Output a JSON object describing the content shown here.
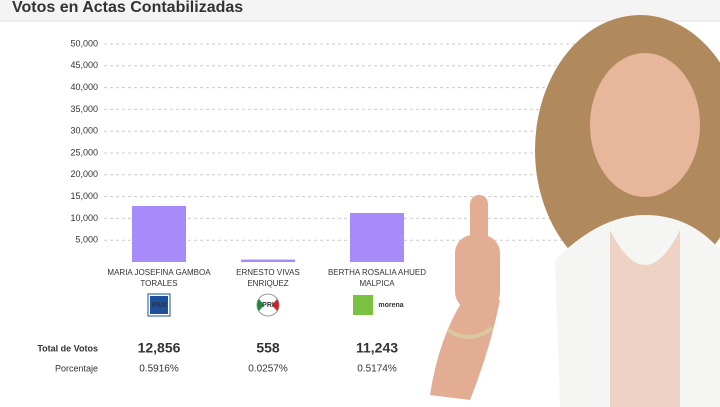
{
  "chart_data": {
    "type": "bar",
    "title": "Votos en Actas Contabilizadas",
    "categories": [
      "MARIA JOSEFINA GAMBOA TORALES",
      "ERNESTO VIVAS ENRIQUEZ",
      "BERTHA ROSALIA AHUED MALPICA"
    ],
    "parties": [
      "PAN",
      "PRI",
      "morena"
    ],
    "values": [
      12856,
      558,
      11243
    ],
    "value_labels": [
      "12,856",
      "558",
      "11,243"
    ],
    "values_label": "Total de Votos",
    "percentages": {
      "label": "Porcentaje",
      "values": [
        0.5916,
        0.0257,
        0.5174
      ],
      "value_labels": [
        "0.5916%",
        "0.0257%",
        "0.5174%"
      ]
    },
    "color": "#a78bfa",
    "ylim": [
      0,
      50000
    ],
    "yticks": [
      {
        "value": 5000,
        "label": "5,000"
      },
      {
        "value": 10000,
        "label": "10,000"
      },
      {
        "value": 15000,
        "label": "15,000"
      },
      {
        "value": 20000,
        "label": "20,000"
      },
      {
        "value": 25000,
        "label": "25,000"
      },
      {
        "value": 30000,
        "label": "30,000"
      },
      {
        "value": 35000,
        "label": "35,000"
      },
      {
        "value": 40000,
        "label": "40,000"
      },
      {
        "value": 45000,
        "label": "45,000"
      },
      {
        "value": 50000,
        "label": "50,000"
      }
    ],
    "grid": true
  }
}
